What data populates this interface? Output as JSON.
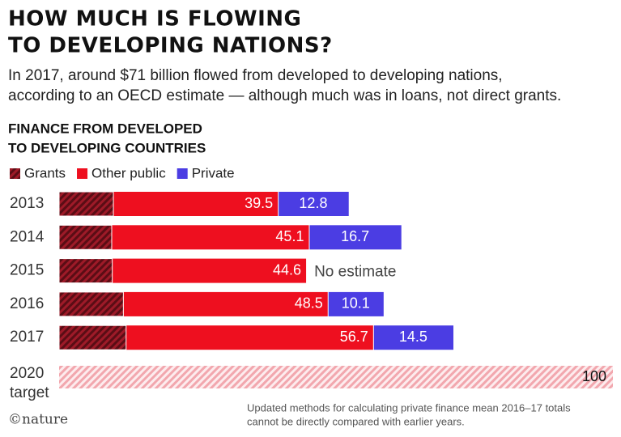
{
  "chart_data": {
    "type": "bar",
    "title": [
      "HOW MUCH IS FLOWING",
      "TO DEVELOPING NATIONS?"
    ],
    "subtitle": [
      "In 2017, around $71 billion flowed from developed to developing nations,",
      "according to an OECD estimate — although much was in loans, not direct grants."
    ],
    "chart_title": [
      "FINANCE FROM DEVELOPED",
      "TO DEVELOPING COUNTRIES"
    ],
    "categories": [
      "2013",
      "2014",
      "2015",
      "2016",
      "2017"
    ],
    "series": [
      {
        "name": "Grants",
        "color": "#9e1a28",
        "hatch": true,
        "values": [
          9.8,
          9.5,
          9.6,
          11.6,
          12.1
        ]
      },
      {
        "name": "Other public",
        "color": "#ee0f1f",
        "values": [
          39.5,
          45.1,
          44.6,
          48.5,
          56.7
        ]
      },
      {
        "name": "Private",
        "color": "#4b3de3",
        "values": [
          12.8,
          16.7,
          null,
          10.1,
          14.5
        ]
      }
    ],
    "annotations": [
      {
        "text": "No estimate"
      }
    ],
    "target": {
      "label": [
        "2020",
        "target"
      ],
      "value": 100,
      "color": "#f2a7ae"
    },
    "note": [
      "Updated methods for calculating private finance mean 2016–17 totals",
      "cannot be directly compared with earlier years."
    ],
    "source": "©nature"
  }
}
